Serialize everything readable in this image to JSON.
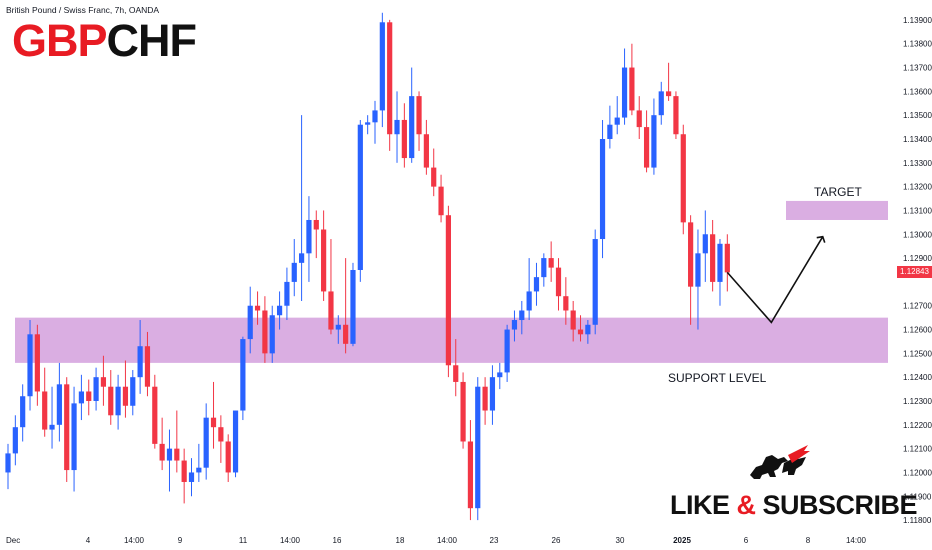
{
  "header": {
    "instrument_line": "British Pound / Swiss Franc, 7h, OANDA",
    "ticker_part1": "GBP",
    "ticker_part2": "CHF"
  },
  "cta": {
    "text_part1": "LIKE",
    "text_amp": "&",
    "text_part2": "SUBSCRIBE"
  },
  "colors": {
    "up": "#2962ff",
    "down": "#f23645",
    "zone": "#ce93d8",
    "brand_red": "#e81b23"
  },
  "chart_data": {
    "type": "candlestick",
    "title": "British Pound / Swiss Franc, 7h, OANDA",
    "ylim": [
      1.1175,
      1.1395
    ],
    "y_ticks": [
      1.139,
      1.138,
      1.137,
      1.136,
      1.135,
      1.134,
      1.133,
      1.132,
      1.131,
      1.13,
      1.129,
      1.127,
      1.126,
      1.125,
      1.124,
      1.123,
      1.122,
      1.121,
      1.12,
      1.119,
      1.118
    ],
    "y_tick_labels": [
      "1.13900",
      "1.13800",
      "1.13700",
      "1.13600",
      "1.13500",
      "1.13400",
      "1.13300",
      "1.13200",
      "1.13100",
      "1.13000",
      "1.12900",
      "1.12700",
      "1.12600",
      "1.12500",
      "1.12400",
      "1.12300",
      "1.12200",
      "1.12100",
      "1.12000",
      "1.11900",
      "1.11800"
    ],
    "x_tick_labels": [
      "Dec",
      "4",
      "14:00",
      "9",
      "11",
      "14:00",
      "16",
      "18",
      "14:00",
      "23",
      "26",
      "30",
      "2025",
      "6",
      "8",
      "14:00"
    ],
    "current_price": "1.12843",
    "candles": [
      {
        "o": 1.12,
        "h": 1.1212,
        "l": 1.1193,
        "c": 1.1208
      },
      {
        "o": 1.1208,
        "h": 1.1224,
        "l": 1.1203,
        "c": 1.1219
      },
      {
        "o": 1.1219,
        "h": 1.1237,
        "l": 1.1213,
        "c": 1.1232
      },
      {
        "o": 1.1232,
        "h": 1.1264,
        "l": 1.1226,
        "c": 1.1258
      },
      {
        "o": 1.1258,
        "h": 1.1262,
        "l": 1.1228,
        "c": 1.1234
      },
      {
        "o": 1.1234,
        "h": 1.1244,
        "l": 1.1215,
        "c": 1.1218
      },
      {
        "o": 1.1218,
        "h": 1.1236,
        "l": 1.121,
        "c": 1.122
      },
      {
        "o": 1.122,
        "h": 1.1246,
        "l": 1.1213,
        "c": 1.1237
      },
      {
        "o": 1.1237,
        "h": 1.124,
        "l": 1.1196,
        "c": 1.1201
      },
      {
        "o": 1.1201,
        "h": 1.1236,
        "l": 1.1192,
        "c": 1.1229
      },
      {
        "o": 1.1229,
        "h": 1.1241,
        "l": 1.1222,
        "c": 1.1234
      },
      {
        "o": 1.1234,
        "h": 1.1239,
        "l": 1.1224,
        "c": 1.123
      },
      {
        "o": 1.123,
        "h": 1.1244,
        "l": 1.1226,
        "c": 1.124
      },
      {
        "o": 1.124,
        "h": 1.1249,
        "l": 1.1228,
        "c": 1.1236
      },
      {
        "o": 1.1236,
        "h": 1.1243,
        "l": 1.122,
        "c": 1.1224
      },
      {
        "o": 1.1224,
        "h": 1.1241,
        "l": 1.1218,
        "c": 1.1236
      },
      {
        "o": 1.1236,
        "h": 1.1247,
        "l": 1.1223,
        "c": 1.1228
      },
      {
        "o": 1.1228,
        "h": 1.1243,
        "l": 1.1224,
        "c": 1.124
      },
      {
        "o": 1.124,
        "h": 1.1264,
        "l": 1.1233,
        "c": 1.1253
      },
      {
        "o": 1.1253,
        "h": 1.1259,
        "l": 1.1232,
        "c": 1.1236
      },
      {
        "o": 1.1236,
        "h": 1.1241,
        "l": 1.121,
        "c": 1.1212
      },
      {
        "o": 1.1212,
        "h": 1.1223,
        "l": 1.1201,
        "c": 1.1205
      },
      {
        "o": 1.1205,
        "h": 1.1218,
        "l": 1.1192,
        "c": 1.121
      },
      {
        "o": 1.121,
        "h": 1.1226,
        "l": 1.12,
        "c": 1.1205
      },
      {
        "o": 1.1205,
        "h": 1.121,
        "l": 1.1187,
        "c": 1.1196
      },
      {
        "o": 1.1196,
        "h": 1.1206,
        "l": 1.119,
        "c": 1.12
      },
      {
        "o": 1.12,
        "h": 1.1212,
        "l": 1.1196,
        "c": 1.1202
      },
      {
        "o": 1.1202,
        "h": 1.1229,
        "l": 1.1197,
        "c": 1.1223
      },
      {
        "o": 1.1223,
        "h": 1.1238,
        "l": 1.121,
        "c": 1.1219
      },
      {
        "o": 1.1219,
        "h": 1.1224,
        "l": 1.1204,
        "c": 1.1213
      },
      {
        "o": 1.1213,
        "h": 1.1216,
        "l": 1.1196,
        "c": 1.12
      },
      {
        "o": 1.12,
        "h": 1.1226,
        "l": 1.1198,
        "c": 1.1226
      },
      {
        "o": 1.1226,
        "h": 1.1257,
        "l": 1.1222,
        "c": 1.1256
      },
      {
        "o": 1.1256,
        "h": 1.1278,
        "l": 1.125,
        "c": 1.127
      },
      {
        "o": 1.127,
        "h": 1.1276,
        "l": 1.1262,
        "c": 1.1268
      },
      {
        "o": 1.1268,
        "h": 1.1274,
        "l": 1.1246,
        "c": 1.125
      },
      {
        "o": 1.125,
        "h": 1.127,
        "l": 1.1246,
        "c": 1.1266
      },
      {
        "o": 1.1266,
        "h": 1.1276,
        "l": 1.126,
        "c": 1.127
      },
      {
        "o": 1.127,
        "h": 1.1286,
        "l": 1.1264,
        "c": 1.128
      },
      {
        "o": 1.128,
        "h": 1.1298,
        "l": 1.1274,
        "c": 1.1288
      },
      {
        "o": 1.1288,
        "h": 1.135,
        "l": 1.1272,
        "c": 1.1292
      },
      {
        "o": 1.1292,
        "h": 1.1316,
        "l": 1.128,
        "c": 1.1306
      },
      {
        "o": 1.1306,
        "h": 1.131,
        "l": 1.129,
        "c": 1.1302
      },
      {
        "o": 1.1302,
        "h": 1.131,
        "l": 1.1272,
        "c": 1.1276
      },
      {
        "o": 1.1276,
        "h": 1.1298,
        "l": 1.1258,
        "c": 1.126
      },
      {
        "o": 1.126,
        "h": 1.1266,
        "l": 1.1254,
        "c": 1.1262
      },
      {
        "o": 1.1262,
        "h": 1.129,
        "l": 1.125,
        "c": 1.1254
      },
      {
        "o": 1.1254,
        "h": 1.1288,
        "l": 1.1253,
        "c": 1.1285
      },
      {
        "o": 1.1285,
        "h": 1.1348,
        "l": 1.128,
        "c": 1.1346
      },
      {
        "o": 1.1346,
        "h": 1.135,
        "l": 1.1342,
        "c": 1.1347
      },
      {
        "o": 1.1347,
        "h": 1.1356,
        "l": 1.1338,
        "c": 1.1352
      },
      {
        "o": 1.1352,
        "h": 1.1393,
        "l": 1.1345,
        "c": 1.1389
      },
      {
        "o": 1.1389,
        "h": 1.139,
        "l": 1.1335,
        "c": 1.1342
      },
      {
        "o": 1.1342,
        "h": 1.136,
        "l": 1.133,
        "c": 1.1348
      },
      {
        "o": 1.1348,
        "h": 1.1355,
        "l": 1.1328,
        "c": 1.1332
      },
      {
        "o": 1.1332,
        "h": 1.137,
        "l": 1.133,
        "c": 1.1358
      },
      {
        "o": 1.1358,
        "h": 1.136,
        "l": 1.1335,
        "c": 1.1342
      },
      {
        "o": 1.1342,
        "h": 1.1348,
        "l": 1.1325,
        "c": 1.1328
      },
      {
        "o": 1.1328,
        "h": 1.1336,
        "l": 1.1316,
        "c": 1.132
      },
      {
        "o": 1.132,
        "h": 1.1325,
        "l": 1.1305,
        "c": 1.1308
      },
      {
        "o": 1.1308,
        "h": 1.1312,
        "l": 1.124,
        "c": 1.1245
      },
      {
        "o": 1.1245,
        "h": 1.1256,
        "l": 1.1232,
        "c": 1.1238
      },
      {
        "o": 1.1238,
        "h": 1.1242,
        "l": 1.121,
        "c": 1.1213
      },
      {
        "o": 1.1213,
        "h": 1.1222,
        "l": 1.118,
        "c": 1.1185
      },
      {
        "o": 1.1185,
        "h": 1.124,
        "l": 1.118,
        "c": 1.1236
      },
      {
        "o": 1.1236,
        "h": 1.124,
        "l": 1.122,
        "c": 1.1226
      },
      {
        "o": 1.1226,
        "h": 1.1245,
        "l": 1.122,
        "c": 1.124
      },
      {
        "o": 1.124,
        "h": 1.1246,
        "l": 1.1235,
        "c": 1.1242
      },
      {
        "o": 1.1242,
        "h": 1.1262,
        "l": 1.1238,
        "c": 1.126
      },
      {
        "o": 1.126,
        "h": 1.1268,
        "l": 1.1255,
        "c": 1.1264
      },
      {
        "o": 1.1264,
        "h": 1.1272,
        "l": 1.1258,
        "c": 1.1268
      },
      {
        "o": 1.1268,
        "h": 1.129,
        "l": 1.1264,
        "c": 1.1276
      },
      {
        "o": 1.1276,
        "h": 1.1288,
        "l": 1.127,
        "c": 1.1282
      },
      {
        "o": 1.1282,
        "h": 1.1292,
        "l": 1.1278,
        "c": 1.129
      },
      {
        "o": 1.129,
        "h": 1.1297,
        "l": 1.128,
        "c": 1.1286
      },
      {
        "o": 1.1286,
        "h": 1.129,
        "l": 1.1268,
        "c": 1.1274
      },
      {
        "o": 1.1274,
        "h": 1.1282,
        "l": 1.1262,
        "c": 1.1268
      },
      {
        "o": 1.1268,
        "h": 1.1272,
        "l": 1.1255,
        "c": 1.126
      },
      {
        "o": 1.126,
        "h": 1.1266,
        "l": 1.1255,
        "c": 1.1258
      },
      {
        "o": 1.1258,
        "h": 1.1264,
        "l": 1.1254,
        "c": 1.1262
      },
      {
        "o": 1.1262,
        "h": 1.1302,
        "l": 1.1258,
        "c": 1.1298
      },
      {
        "o": 1.1298,
        "h": 1.1348,
        "l": 1.129,
        "c": 1.134
      },
      {
        "o": 1.134,
        "h": 1.1354,
        "l": 1.1336,
        "c": 1.1346
      },
      {
        "o": 1.1346,
        "h": 1.1358,
        "l": 1.1342,
        "c": 1.1349
      },
      {
        "o": 1.1349,
        "h": 1.1378,
        "l": 1.1346,
        "c": 1.137
      },
      {
        "o": 1.137,
        "h": 1.138,
        "l": 1.135,
        "c": 1.1352
      },
      {
        "o": 1.1352,
        "h": 1.1358,
        "l": 1.134,
        "c": 1.1345
      },
      {
        "o": 1.1345,
        "h": 1.1352,
        "l": 1.1326,
        "c": 1.1328
      },
      {
        "o": 1.1328,
        "h": 1.1357,
        "l": 1.1325,
        "c": 1.135
      },
      {
        "o": 1.135,
        "h": 1.1364,
        "l": 1.1346,
        "c": 1.136
      },
      {
        "o": 1.136,
        "h": 1.1372,
        "l": 1.1356,
        "c": 1.1358
      },
      {
        "o": 1.1358,
        "h": 1.136,
        "l": 1.134,
        "c": 1.1342
      },
      {
        "o": 1.1342,
        "h": 1.1346,
        "l": 1.13,
        "c": 1.1305
      },
      {
        "o": 1.1305,
        "h": 1.1308,
        "l": 1.1262,
        "c": 1.1278
      },
      {
        "o": 1.1278,
        "h": 1.1302,
        "l": 1.126,
        "c": 1.1292
      },
      {
        "o": 1.1292,
        "h": 1.131,
        "l": 1.128,
        "c": 1.13
      },
      {
        "o": 1.13,
        "h": 1.1306,
        "l": 1.1276,
        "c": 1.128
      },
      {
        "o": 1.128,
        "h": 1.1298,
        "l": 1.127,
        "c": 1.1296
      },
      {
        "o": 1.1296,
        "h": 1.13,
        "l": 1.1276,
        "c": 1.1284
      }
    ],
    "zones": [
      {
        "label": "SUPPORT LEVEL",
        "from": 1.1246,
        "to": 1.1265,
        "x_start_candle": 0,
        "x_end_candle": null
      },
      {
        "label": "TARGET",
        "from": 1.1306,
        "to": 1.1314,
        "x_start_candle": "projection",
        "x_end_candle": null
      }
    ],
    "projection": [
      {
        "step": 0,
        "price": 1.1284
      },
      {
        "step": 6,
        "price": 1.1263
      },
      {
        "step": 13,
        "price": 1.1299
      }
    ],
    "annotations": [
      "TARGET",
      "SUPPORT LEVEL"
    ]
  }
}
